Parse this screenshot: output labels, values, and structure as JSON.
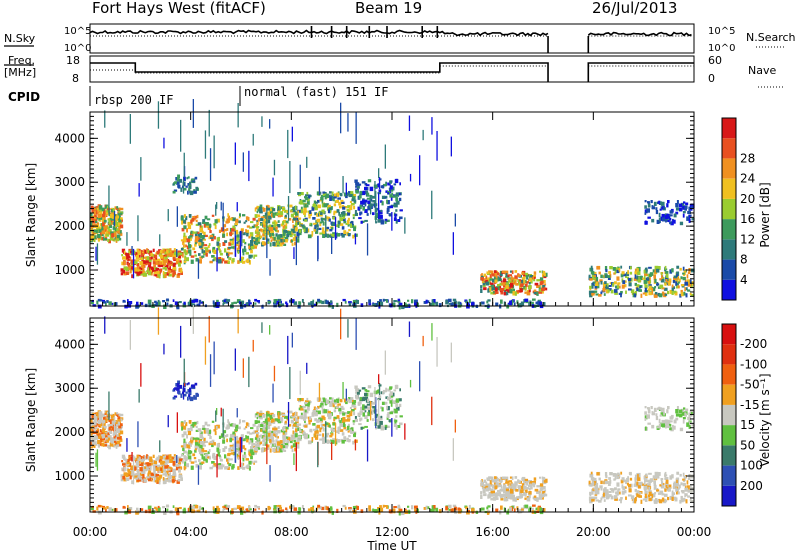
{
  "header": {
    "site": "Fort Hays West (fitACF)",
    "beam": "Beam 19",
    "date": "26/Jul/2013"
  },
  "top_panels": {
    "nsky_label": "N.Sky",
    "nsearch_label": "N.Search",
    "noise_ticks": [
      "10^5",
      "10^0"
    ],
    "freq_label": "Freq.",
    "freq_unit": "[MHz]",
    "freq_ticks": [
      "18",
      "8"
    ],
    "nave_ticks": [
      "60",
      "0"
    ],
    "nave_label": "Nave",
    "cpid_label": "CPID",
    "modes": [
      {
        "label": "rbsp 200 IF",
        "start_h": 0.0
      },
      {
        "label": "normal (fast) 151 IF",
        "start_h": 5.95
      }
    ]
  },
  "chart_data": [
    {
      "type": "heatmap",
      "name": "power",
      "ylabel": "Slant Range [km]",
      "ylim": [
        180,
        4600
      ],
      "yticks": [
        1000,
        2000,
        3000,
        4000
      ],
      "colorbar": {
        "label": "Power [dB]",
        "ticks": [
          "4",
          "8",
          "12",
          "16",
          "20",
          "24",
          "28"
        ],
        "colors": [
          "#1010e0",
          "#1a4aa8",
          "#2e7a7a",
          "#3d9a5c",
          "#9acc30",
          "#f0c020",
          "#f09020",
          "#e85020",
          "#d81818"
        ]
      }
    },
    {
      "type": "heatmap",
      "name": "velocity",
      "ylabel": "Slant Range [km]",
      "ylim": [
        180,
        4600
      ],
      "yticks": [
        1000,
        2000,
        3000,
        4000
      ],
      "xlabel": "Time UT",
      "xticks": [
        "00:00",
        "04:00",
        "08:00",
        "12:00",
        "16:00",
        "20:00",
        "00:00"
      ],
      "xlim_hours": [
        0,
        24
      ],
      "data_gap_hours": [
        18.2,
        19.8
      ],
      "colorbar": {
        "label": "Velocity [m s⁻¹]",
        "ticks": [
          "200",
          "100",
          "50",
          "15",
          "-15",
          "-50",
          "-100",
          "-200"
        ],
        "colors": [
          "#1818c8",
          "#2e50b4",
          "#3a7a6a",
          "#60c040",
          "#c8c8c0",
          "#f0a020",
          "#f06010",
          "#e03010",
          "#d81010"
        ]
      }
    }
  ]
}
